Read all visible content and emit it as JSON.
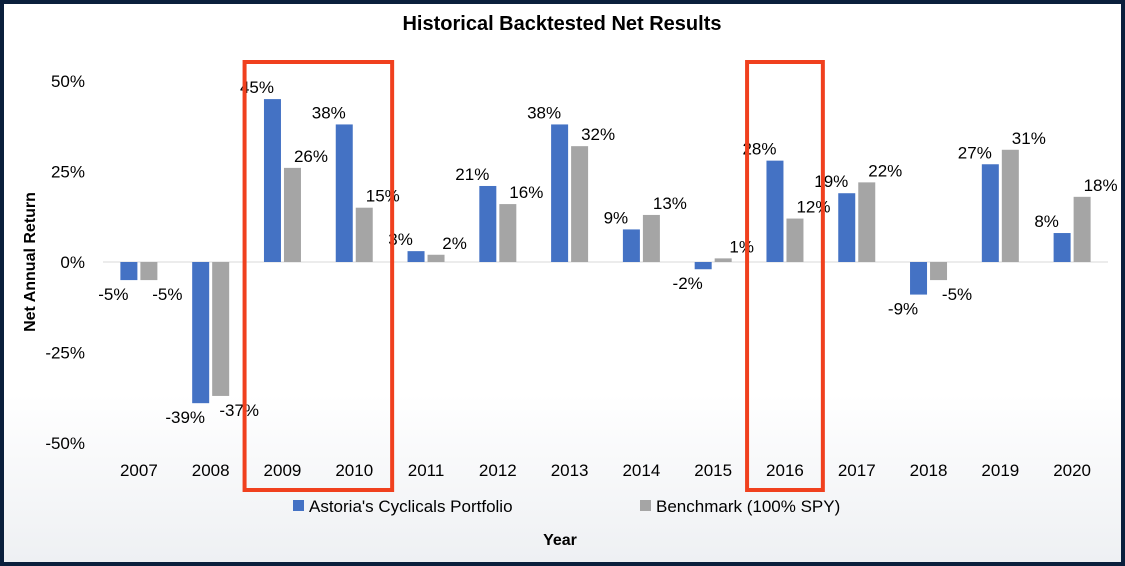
{
  "chart_data": {
    "type": "bar",
    "title": "Historical Backtested Net Results",
    "xlabel": "Year",
    "ylabel": "Net Annual Return",
    "categories": [
      "2007",
      "2008",
      "2009",
      "2010",
      "2011",
      "2012",
      "2013",
      "2014",
      "2015",
      "2016",
      "2017",
      "2018",
      "2019",
      "2020"
    ],
    "series": [
      {
        "name": "Astoria's Cyclicals Portfolio",
        "color": "#4472c4",
        "values": [
          -5,
          -39,
          45,
          38,
          3,
          21,
          38,
          9,
          -2,
          28,
          19,
          -9,
          27,
          8
        ],
        "labels": [
          "-5%",
          "-39%",
          "45%",
          "38%",
          "3%",
          "21%",
          "38%",
          "9%",
          "-2%",
          "28%",
          "19%",
          "-9%",
          "27%",
          "8%"
        ]
      },
      {
        "name": "Benchmark (100% SPY)",
        "color": "#a5a5a5",
        "values": [
          -5,
          -37,
          26,
          15,
          2,
          16,
          32,
          13,
          1,
          12,
          22,
          -5,
          31,
          18
        ],
        "labels": [
          "-5%",
          "-37%",
          "26%",
          "15%",
          "2%",
          "16%",
          "32%",
          "13%",
          "1%",
          "12%",
          "22%",
          "-5%",
          "31%",
          "18%"
        ]
      }
    ],
    "ylim": [
      -50,
      50
    ],
    "yticks": [
      50,
      25,
      0,
      -25,
      -50
    ],
    "ytick_labels": [
      "50%",
      "25%",
      "0%",
      "-25%",
      "-50%"
    ],
    "grid": false,
    "legend_position": "bottom",
    "highlights": [
      {
        "categories": [
          "2009",
          "2010"
        ],
        "color": "#f0401e"
      },
      {
        "categories": [
          "2016"
        ],
        "color": "#f0401e"
      }
    ]
  }
}
